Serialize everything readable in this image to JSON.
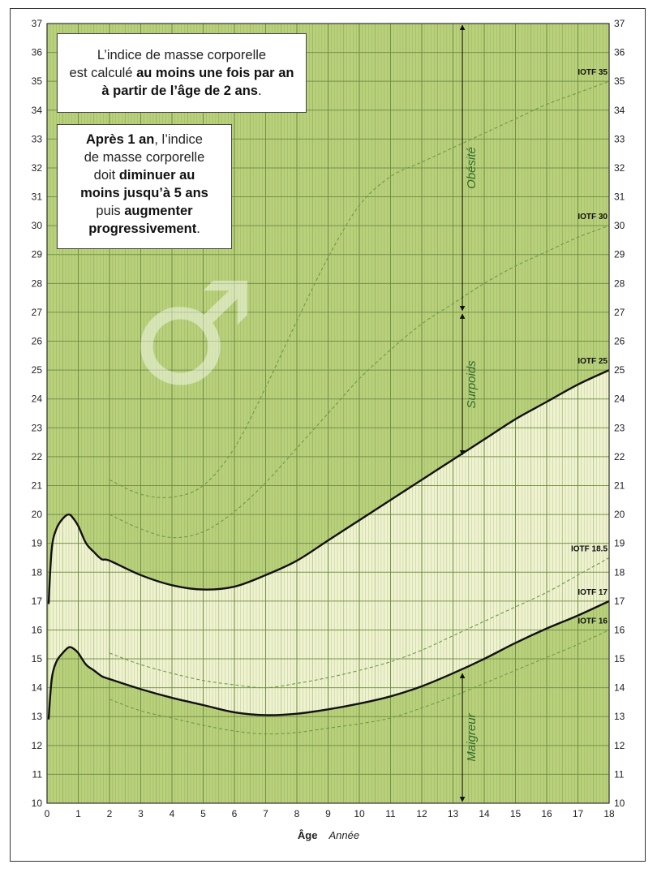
{
  "chart_data": {
    "type": "line",
    "xlabel": "Âge",
    "xunit": "Année",
    "xlim": [
      0,
      18
    ],
    "ylim": [
      10,
      37
    ],
    "x_ticks": [
      0,
      1,
      2,
      3,
      4,
      5,
      6,
      7,
      8,
      9,
      10,
      11,
      12,
      13,
      14,
      15,
      16,
      17,
      18
    ],
    "y_ticks": [
      10,
      11,
      12,
      13,
      14,
      15,
      16,
      17,
      18,
      19,
      20,
      21,
      22,
      23,
      24,
      25,
      26,
      27,
      28,
      29,
      30,
      31,
      32,
      33,
      34,
      35,
      36,
      37
    ],
    "grid": true,
    "colors": {
      "background": "#b9d17b",
      "normal_zone": "#eff3cf",
      "grid": "#6f8a45",
      "curve": "#111111",
      "dashed": "#6a9a4a",
      "zone_text": "#2f6b2a"
    },
    "series": [
      {
        "name": "IOTF 35",
        "style": "dashed",
        "x": [
          2,
          3,
          4,
          5,
          6,
          7,
          8,
          9,
          10,
          11,
          12,
          13,
          14,
          15,
          16,
          17,
          18
        ],
        "y": [
          21.2,
          20.7,
          20.6,
          21.0,
          22.3,
          24.4,
          26.7,
          28.9,
          30.7,
          31.7,
          32.2,
          32.7,
          33.2,
          33.7,
          34.2,
          34.6,
          35.0
        ]
      },
      {
        "name": "IOTF 30",
        "style": "dashed",
        "x": [
          2,
          3,
          4,
          5,
          6,
          7,
          8,
          9,
          10,
          11,
          12,
          13,
          14,
          15,
          16,
          17,
          18
        ],
        "y": [
          20.0,
          19.5,
          19.2,
          19.4,
          20.1,
          21.1,
          22.3,
          23.5,
          24.7,
          25.7,
          26.6,
          27.3,
          28.0,
          28.6,
          29.1,
          29.6,
          30.0
        ]
      },
      {
        "name": "IOTF 25",
        "style": "solid",
        "x": [
          2,
          3,
          4,
          5,
          6,
          7,
          8,
          9,
          10,
          11,
          12,
          13,
          14,
          15,
          16,
          17,
          18
        ],
        "y": [
          18.4,
          17.9,
          17.55,
          17.4,
          17.5,
          17.9,
          18.4,
          19.1,
          19.8,
          20.5,
          21.2,
          21.9,
          22.6,
          23.3,
          23.9,
          24.5,
          25.0
        ]
      },
      {
        "name": "IOTF 18.5",
        "style": "dashed",
        "x": [
          2,
          3,
          4,
          5,
          6,
          7,
          8,
          9,
          10,
          11,
          12,
          13,
          14,
          15,
          16,
          17,
          18
        ],
        "y": [
          15.2,
          14.8,
          14.5,
          14.25,
          14.1,
          14.0,
          14.15,
          14.35,
          14.6,
          14.9,
          15.3,
          15.8,
          16.3,
          16.8,
          17.3,
          17.9,
          18.5
        ]
      },
      {
        "name": "IOTF 17",
        "style": "solid",
        "x": [
          2,
          3,
          4,
          5,
          6,
          7,
          8,
          9,
          10,
          11,
          12,
          13,
          14,
          15,
          16,
          17,
          18
        ],
        "y": [
          14.3,
          13.95,
          13.65,
          13.4,
          13.15,
          13.05,
          13.1,
          13.25,
          13.45,
          13.7,
          14.05,
          14.5,
          15.0,
          15.55,
          16.05,
          16.5,
          17.0
        ]
      },
      {
        "name": "IOTF 16",
        "style": "dashed",
        "x": [
          2,
          3,
          4,
          5,
          6,
          7,
          8,
          9,
          10,
          11,
          12,
          13,
          14,
          15,
          16,
          17,
          18
        ],
        "y": [
          13.6,
          13.2,
          12.95,
          12.7,
          12.5,
          12.4,
          12.45,
          12.6,
          12.75,
          12.95,
          13.3,
          13.7,
          14.15,
          14.6,
          15.05,
          15.5,
          16.0
        ]
      }
    ],
    "infant_upper": {
      "x": [
        0.05,
        0.15,
        0.3,
        0.5,
        0.7,
        0.85,
        1.0,
        1.25,
        1.5,
        1.75,
        2.0
      ],
      "y": [
        16.9,
        18.8,
        19.5,
        19.85,
        20.0,
        19.85,
        19.6,
        19.0,
        18.7,
        18.45,
        18.4
      ]
    },
    "infant_lower": {
      "x": [
        0.05,
        0.15,
        0.3,
        0.5,
        0.7,
        0.85,
        1.0,
        1.25,
        1.5,
        1.75,
        2.0
      ],
      "y": [
        12.9,
        14.3,
        14.9,
        15.2,
        15.4,
        15.35,
        15.2,
        14.8,
        14.6,
        14.4,
        14.3
      ]
    },
    "zones": [
      {
        "label": "Obésité",
        "y_from": 27,
        "y_to": 37
      },
      {
        "label": "Surpoids",
        "y_from": 22,
        "y_to": 27
      },
      {
        "label": "Maigreur",
        "y_from": 10,
        "y_to": 14.55
      }
    ],
    "zone_arrow_x": 13.3,
    "symbol": "♂"
  },
  "notes": {
    "note1": {
      "line1": "L’indice de masse corporelle",
      "line2_pre": "est calculé ",
      "line2_bold": "au moins une fois par an",
      "line3_bold": "à partir de l’âge de 2 ans",
      "line3_post": "."
    },
    "note2": {
      "l1_bold": "Après 1 an",
      "l1_post": ", l’indice",
      "l2": "de masse corporelle",
      "l3_pre": "doit ",
      "l3_bold": "diminuer au",
      "l4_bold": "moins jusqu’à 5 ans",
      "l5_pre": "puis ",
      "l5_bold": "augmenter",
      "l6_bold": "progressivement",
      "l6_post": "."
    }
  }
}
